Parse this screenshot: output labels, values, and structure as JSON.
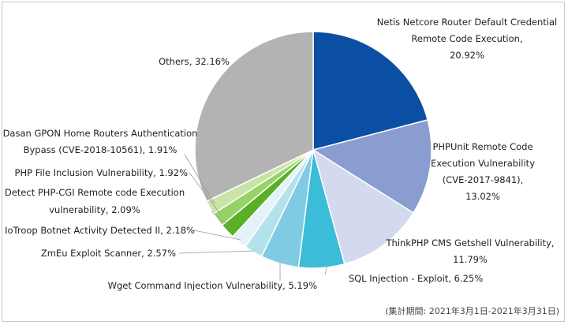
{
  "chart_data": {
    "type": "pie",
    "title": "",
    "colors": {
      "Netis": "#0a4fa3",
      "PHPUnit": "#8a9dd0",
      "ThinkPHP": "#d3d9ee",
      "SQL": "#3bbcd8",
      "Wget": "#7fcbe3",
      "ZmEu": "#b4e2ec",
      "IoTroop": "#e4f3f7",
      "PHPCGI": "#58b029",
      "PHPFile": "#97d266",
      "Dasan": "#c8e4a6",
      "Others": "#b3b3b3"
    },
    "slices": [
      {
        "key": "Netis",
        "label_lines": [
          "Netis Netcore Router Default Credential",
          "Remote Code Execution,",
          "20.92%"
        ],
        "value": 20.92
      },
      {
        "key": "PHPUnit",
        "label_lines": [
          "PHPUnit Remote Code",
          "Execution Vulnerability",
          "(CVE-2017-9841),",
          "13.02%"
        ],
        "value": 13.02
      },
      {
        "key": "ThinkPHP",
        "label_lines": [
          "ThinkPHP CMS Getshell Vulnerability,",
          "11.79%"
        ],
        "value": 11.79
      },
      {
        "key": "SQL",
        "label_lines": [
          "SQL Injection - Exploit, 6.25%"
        ],
        "value": 6.25
      },
      {
        "key": "Wget",
        "label_lines": [
          "Wget Command Injection Vulnerability, 5.19%"
        ],
        "value": 5.19
      },
      {
        "key": "ZmEu",
        "label_lines": [
          "ZmEu Exploit Scanner, 2.57%"
        ],
        "value": 2.57
      },
      {
        "key": "IoTroop",
        "label_lines": [
          "IoTroop Botnet Activity Detected II, 2.18%"
        ],
        "value": 2.18
      },
      {
        "key": "PHPCGI",
        "label_lines": [
          "Detect PHP-CGI Remote code Execution",
          "vulnerability, 2.09%"
        ],
        "value": 2.09
      },
      {
        "key": "PHPFile",
        "label_lines": [
          "PHP File Inclusion Vulnerability, 1.92%"
        ],
        "value": 1.92
      },
      {
        "key": "Dasan",
        "label_lines": [
          "Dasan GPON Home Routers Authentication",
          "Bypass (CVE-2018-10561), 1.91%"
        ],
        "value": 1.91
      },
      {
        "key": "Others",
        "label_lines": [
          "Others, 32.16%"
        ],
        "value": 32.16
      }
    ]
  },
  "footnote": "(集計期間: 2021年3月1日-2021年3月31日)"
}
